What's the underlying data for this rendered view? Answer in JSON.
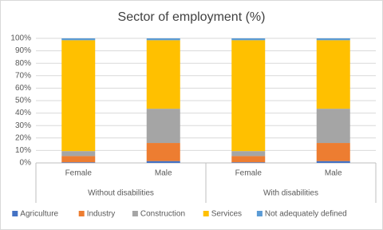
{
  "chart_data": {
    "type": "stacked_bar",
    "title": "Sector of employment (%)",
    "categories": [
      "Female",
      "Male",
      "Female",
      "Male"
    ],
    "groups": [
      "Without disabilities",
      "With disabilities"
    ],
    "series": [
      {
        "name": "Agriculture",
        "color": "#4472c4",
        "values": [
          0.5,
          1.5,
          0.5,
          1.5
        ]
      },
      {
        "name": "Industry",
        "color": "#ed7d31",
        "values": [
          5,
          14.5,
          5,
          14.5
        ]
      },
      {
        "name": "Construction",
        "color": "#a5a5a5",
        "values": [
          4,
          27.5,
          4,
          27.5
        ]
      },
      {
        "name": "Services",
        "color": "#ffc000",
        "values": [
          89,
          55,
          89,
          55
        ]
      },
      {
        "name": "Not adequately defined",
        "color": "#5b9bd5",
        "values": [
          1.5,
          1.5,
          1.5,
          1.5
        ]
      }
    ],
    "ylim": [
      0,
      100
    ],
    "yticks": [
      {
        "value": 0,
        "label": "0%"
      },
      {
        "value": 10,
        "label": "10%"
      },
      {
        "value": 20,
        "label": "20%"
      },
      {
        "value": 30,
        "label": "30%"
      },
      {
        "value": 40,
        "label": "40%"
      },
      {
        "value": 50,
        "label": "50%"
      },
      {
        "value": 60,
        "label": "60%"
      },
      {
        "value": 70,
        "label": "70%"
      },
      {
        "value": 80,
        "label": "80%"
      },
      {
        "value": 90,
        "label": "90%"
      },
      {
        "value": 100,
        "label": "100%"
      }
    ],
    "grid": true,
    "legend": "bottom"
  }
}
